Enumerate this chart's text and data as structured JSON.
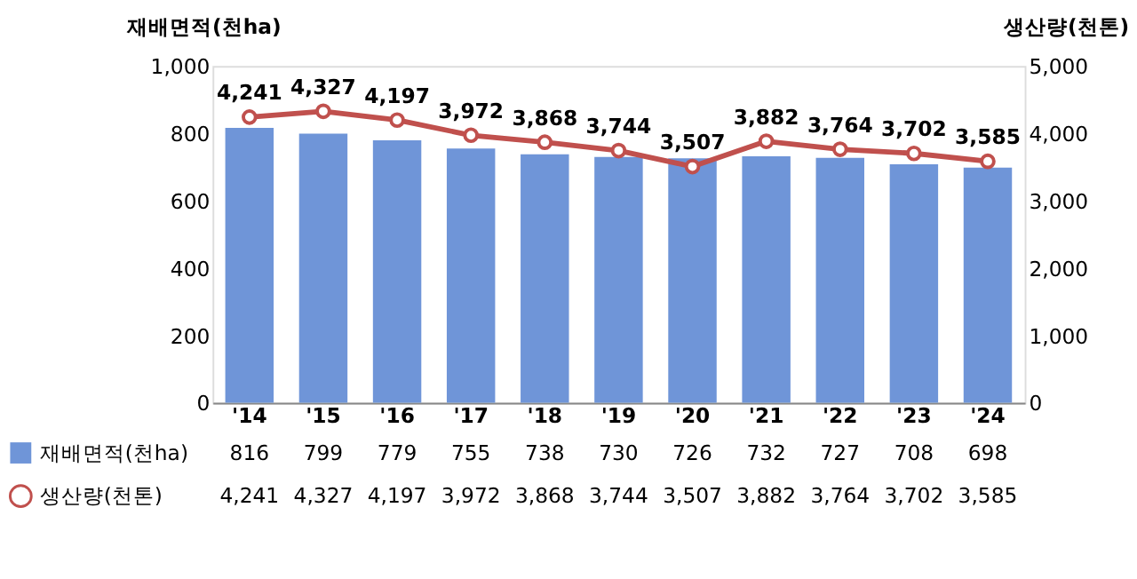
{
  "chart_data": {
    "type": "bar",
    "categories": [
      "'14",
      "'15",
      "'16",
      "'17",
      "'18",
      "'19",
      "'20",
      "'21",
      "'22",
      "'23",
      "'24"
    ],
    "series": [
      {
        "name": "재배면적(천ha)",
        "color": "#6f95d8",
        "values": [
          816,
          799,
          779,
          755,
          738,
          730,
          726,
          732,
          727,
          708,
          698
        ]
      },
      {
        "name": "생산량(천톤)",
        "type": "line",
        "axis": "y2",
        "color": "#c0504d",
        "marker": "circle",
        "line_style": "solid",
        "values": [
          4241,
          4327,
          4197,
          3972,
          3868,
          3744,
          3507,
          3882,
          3764,
          3702,
          3585
        ],
        "value_labels": [
          "4,241",
          "4,327",
          "4,197",
          "3,972",
          "3,868",
          "3,744",
          "3,507",
          "3,882",
          "3,764",
          "3,702",
          "3,585"
        ]
      }
    ],
    "ylabel": "재배면적(천ha)",
    "y2label": "생산량(천톤)",
    "ylim": [
      0,
      1000
    ],
    "yticks": [
      0,
      200,
      400,
      600,
      800,
      {
        "value": 1000,
        "label": "1,000"
      }
    ],
    "y2lim": [
      0,
      5000
    ],
    "y2ticks": [
      0,
      {
        "value": 1000,
        "label": "1,000"
      },
      {
        "value": 2000,
        "label": "2,000"
      },
      {
        "value": 3000,
        "label": "3,000"
      },
      {
        "value": 4000,
        "label": "4,000"
      },
      {
        "value": 5000,
        "label": "5,000"
      }
    ],
    "data_labels": true,
    "legend": "bottom left"
  }
}
